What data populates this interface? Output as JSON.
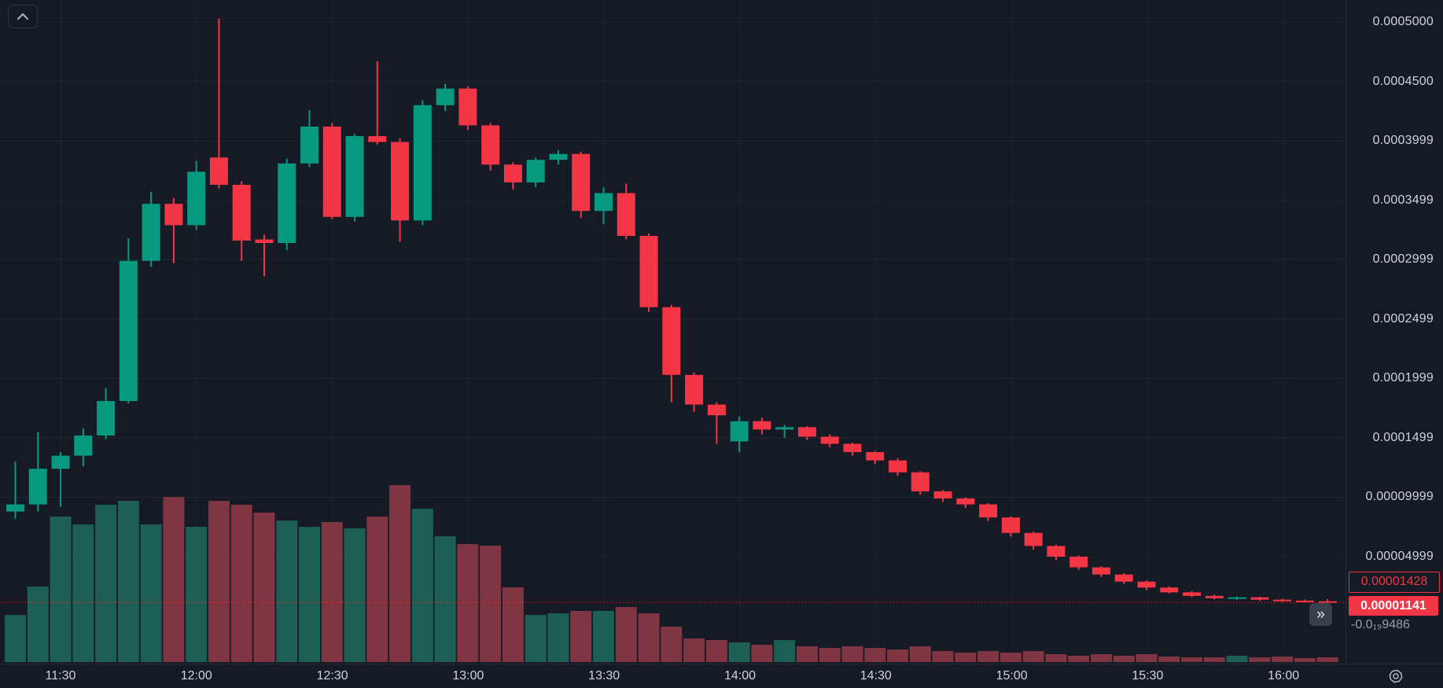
{
  "controls": {
    "collapse_button": {
      "icon": "chevron-up-icon"
    },
    "expand_button": {
      "icon": "double-chevron-right-icon",
      "glyph": "»"
    },
    "settings_button": {
      "icon": "gear-icon"
    }
  },
  "price_axis": {
    "ticks": [
      {
        "text": "0.0005000",
        "value": 50.0
      },
      {
        "text": "0.0004500",
        "value": 45.0
      },
      {
        "text": "0.0003999",
        "value": 39.99
      },
      {
        "text": "0.0003499",
        "value": 34.99
      },
      {
        "text": "0.0002999",
        "value": 29.99
      },
      {
        "text": "0.0002499",
        "value": 24.99
      },
      {
        "text": "0.0001999",
        "value": 19.99
      },
      {
        "text": "0.0001499",
        "value": 14.99
      },
      {
        "text": "0.00009999",
        "value": 9.999
      },
      {
        "text": "0.00004999",
        "value": 4.999
      }
    ],
    "secondary_price_label": {
      "text": "0.00001428",
      "value": 1.428,
      "style": "red-outline"
    },
    "last_price_label": {
      "text": "0.00001141",
      "value": 1.141,
      "style": "red-filled"
    },
    "change_label": {
      "text": "-0.0₁₉9486"
    }
  },
  "time_axis": {
    "labels": [
      "11:30",
      "12:00",
      "12:30",
      "13:00",
      "13:30",
      "14:00",
      "14:30",
      "15:00",
      "15:30",
      "16:00"
    ]
  },
  "chart_data": {
    "type": "candlestick-with-volume",
    "interval_minutes": 5,
    "price_unit": "1e-5",
    "volume_unit": "relative",
    "grid": true,
    "last_price": 1.141,
    "colors": {
      "up": "#089981",
      "down": "#f23645",
      "volume_up": "#1d5f53",
      "volume_down": "#7f3642",
      "last_price_line": "#f23645",
      "background": "#151a25",
      "grid": "rgba(250,250,250,0.055)",
      "axis_text": "#d1d4dc"
    },
    "ylim_price_unit": [
      0,
      52
    ],
    "candles": [
      {
        "t": "11:20",
        "o": 8.8,
        "h": 13.0,
        "l": 8.2,
        "c": 9.4,
        "v": 60
      },
      {
        "t": "11:25",
        "o": 9.4,
        "h": 15.5,
        "l": 8.8,
        "c": 12.4,
        "v": 96
      },
      {
        "t": "11:30",
        "o": 12.4,
        "h": 13.8,
        "l": 9.2,
        "c": 13.5,
        "v": 185
      },
      {
        "t": "11:35",
        "o": 13.5,
        "h": 15.8,
        "l": 12.6,
        "c": 15.2,
        "v": 175
      },
      {
        "t": "11:40",
        "o": 15.2,
        "h": 19.2,
        "l": 14.9,
        "c": 18.1,
        "v": 200
      },
      {
        "t": "11:45",
        "o": 18.1,
        "h": 31.8,
        "l": 17.9,
        "c": 29.9,
        "v": 205
      },
      {
        "t": "11:50",
        "o": 29.9,
        "h": 35.7,
        "l": 29.4,
        "c": 34.7,
        "v": 175
      },
      {
        "t": "11:55",
        "o": 34.7,
        "h": 35.2,
        "l": 29.7,
        "c": 32.9,
        "v": 210
      },
      {
        "t": "12:00",
        "o": 32.9,
        "h": 38.3,
        "l": 32.5,
        "c": 37.4,
        "v": 172
      },
      {
        "t": "12:05",
        "o": 38.6,
        "h": 50.3,
        "l": 36.0,
        "c": 36.3,
        "v": 205
      },
      {
        "t": "12:10",
        "o": 36.3,
        "h": 36.6,
        "l": 29.9,
        "c": 31.6,
        "v": 200
      },
      {
        "t": "12:15",
        "o": 31.7,
        "h": 32.1,
        "l": 28.6,
        "c": 31.4,
        "v": 190
      },
      {
        "t": "12:20",
        "o": 31.4,
        "h": 38.5,
        "l": 30.8,
        "c": 38.1,
        "v": 180
      },
      {
        "t": "12:25",
        "o": 38.1,
        "h": 42.6,
        "l": 37.8,
        "c": 41.2,
        "v": 172
      },
      {
        "t": "12:30",
        "o": 41.2,
        "h": 41.5,
        "l": 33.4,
        "c": 33.6,
        "v": 178
      },
      {
        "t": "12:35",
        "o": 33.6,
        "h": 40.6,
        "l": 33.2,
        "c": 40.4,
        "v": 170
      },
      {
        "t": "12:40",
        "o": 40.4,
        "h": 46.7,
        "l": 39.7,
        "c": 39.9,
        "v": 185
      },
      {
        "t": "12:45",
        "o": 39.9,
        "h": 40.2,
        "l": 31.5,
        "c": 33.3,
        "v": 225
      },
      {
        "t": "12:50",
        "o": 33.3,
        "h": 43.4,
        "l": 32.9,
        "c": 43.0,
        "v": 195
      },
      {
        "t": "12:55",
        "o": 43.0,
        "h": 44.8,
        "l": 42.5,
        "c": 44.4,
        "v": 160
      },
      {
        "t": "13:00",
        "o": 44.4,
        "h": 44.6,
        "l": 40.9,
        "c": 41.3,
        "v": 150
      },
      {
        "t": "13:05",
        "o": 41.3,
        "h": 41.5,
        "l": 37.5,
        "c": 38.0,
        "v": 148
      },
      {
        "t": "13:10",
        "o": 38.0,
        "h": 38.2,
        "l": 35.9,
        "c": 36.5,
        "v": 95
      },
      {
        "t": "13:15",
        "o": 36.5,
        "h": 38.6,
        "l": 36.1,
        "c": 38.4,
        "v": 60
      },
      {
        "t": "13:20",
        "o": 38.4,
        "h": 39.2,
        "l": 38.0,
        "c": 38.9,
        "v": 62
      },
      {
        "t": "13:25",
        "o": 38.9,
        "h": 39.1,
        "l": 33.5,
        "c": 34.1,
        "v": 65
      },
      {
        "t": "13:30",
        "o": 34.1,
        "h": 36.1,
        "l": 33.0,
        "c": 35.6,
        "v": 65
      },
      {
        "t": "13:35",
        "o": 35.6,
        "h": 36.4,
        "l": 31.7,
        "c": 32.0,
        "v": 70
      },
      {
        "t": "13:40",
        "o": 32.0,
        "h": 32.2,
        "l": 25.6,
        "c": 26.0,
        "v": 62
      },
      {
        "t": "13:45",
        "o": 26.0,
        "h": 26.2,
        "l": 18.0,
        "c": 20.3,
        "v": 45
      },
      {
        "t": "13:50",
        "o": 20.3,
        "h": 20.5,
        "l": 17.2,
        "c": 17.8,
        "v": 30
      },
      {
        "t": "13:55",
        "o": 17.8,
        "h": 18.0,
        "l": 14.5,
        "c": 16.9,
        "v": 28
      },
      {
        "t": "14:00",
        "o": 14.7,
        "h": 16.8,
        "l": 13.8,
        "c": 16.4,
        "v": 25
      },
      {
        "t": "14:05",
        "o": 16.4,
        "h": 16.7,
        "l": 15.3,
        "c": 15.7,
        "v": 22
      },
      {
        "t": "14:10",
        "o": 15.7,
        "h": 16.1,
        "l": 15.0,
        "c": 15.9,
        "v": 28
      },
      {
        "t": "14:15",
        "o": 15.9,
        "h": 16.0,
        "l": 14.8,
        "c": 15.1,
        "v": 20
      },
      {
        "t": "14:20",
        "o": 15.1,
        "h": 15.3,
        "l": 14.2,
        "c": 14.5,
        "v": 18
      },
      {
        "t": "14:25",
        "o": 14.5,
        "h": 14.6,
        "l": 13.5,
        "c": 13.8,
        "v": 20
      },
      {
        "t": "14:30",
        "o": 13.8,
        "h": 13.9,
        "l": 12.8,
        "c": 13.1,
        "v": 18
      },
      {
        "t": "14:35",
        "o": 13.1,
        "h": 13.3,
        "l": 11.8,
        "c": 12.1,
        "v": 16
      },
      {
        "t": "14:40",
        "o": 12.1,
        "h": 12.2,
        "l": 10.2,
        "c": 10.5,
        "v": 20
      },
      {
        "t": "14:45",
        "o": 10.5,
        "h": 10.6,
        "l": 9.6,
        "c": 9.9,
        "v": 14
      },
      {
        "t": "14:50",
        "o": 9.9,
        "h": 10.0,
        "l": 9.1,
        "c": 9.4,
        "v": 12
      },
      {
        "t": "14:55",
        "o": 9.4,
        "h": 9.5,
        "l": 8.0,
        "c": 8.3,
        "v": 14
      },
      {
        "t": "15:00",
        "o": 8.3,
        "h": 8.4,
        "l": 6.7,
        "c": 7.0,
        "v": 12
      },
      {
        "t": "15:05",
        "o": 7.0,
        "h": 7.1,
        "l": 5.6,
        "c": 5.9,
        "v": 14
      },
      {
        "t": "15:10",
        "o": 5.9,
        "h": 6.0,
        "l": 4.7,
        "c": 5.0,
        "v": 10
      },
      {
        "t": "15:15",
        "o": 5.0,
        "h": 5.1,
        "l": 3.9,
        "c": 4.1,
        "v": 8
      },
      {
        "t": "15:20",
        "o": 4.1,
        "h": 4.2,
        "l": 3.3,
        "c": 3.5,
        "v": 10
      },
      {
        "t": "15:25",
        "o": 3.5,
        "h": 3.6,
        "l": 2.7,
        "c": 2.9,
        "v": 8
      },
      {
        "t": "15:30",
        "o": 2.9,
        "h": 3.0,
        "l": 2.2,
        "c": 2.4,
        "v": 10
      },
      {
        "t": "15:35",
        "o": 2.4,
        "h": 2.5,
        "l": 1.9,
        "c": 2.0,
        "v": 7
      },
      {
        "t": "15:40",
        "o": 2.0,
        "h": 2.1,
        "l": 1.6,
        "c": 1.7,
        "v": 6
      },
      {
        "t": "15:45",
        "o": 1.7,
        "h": 1.8,
        "l": 1.4,
        "c": 1.5,
        "v": 6
      },
      {
        "t": "15:50",
        "o": 1.5,
        "h": 1.65,
        "l": 1.35,
        "c": 1.58,
        "v": 8
      },
      {
        "t": "15:55",
        "o": 1.58,
        "h": 1.62,
        "l": 1.3,
        "c": 1.38,
        "v": 6
      },
      {
        "t": "16:00",
        "o": 1.38,
        "h": 1.45,
        "l": 1.2,
        "c": 1.3,
        "v": 7
      },
      {
        "t": "16:05",
        "o": 1.3,
        "h": 1.4,
        "l": 1.15,
        "c": 1.25,
        "v": 5
      },
      {
        "t": "16:10",
        "o": 1.25,
        "h": 1.43,
        "l": 1.1,
        "c": 1.141,
        "v": 6
      }
    ]
  }
}
